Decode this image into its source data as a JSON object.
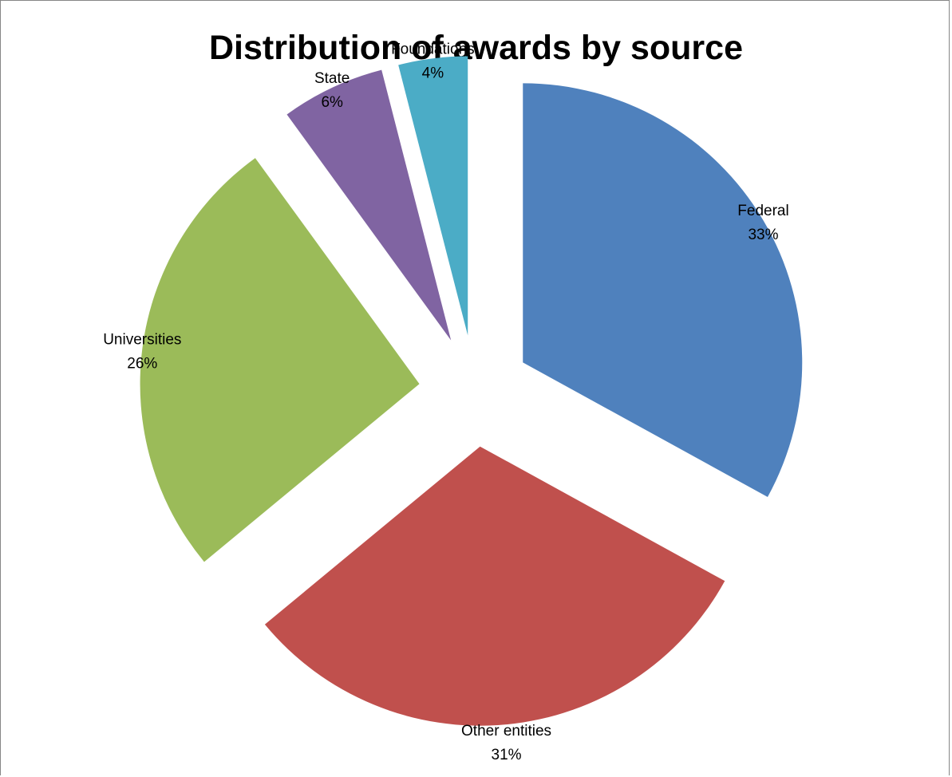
{
  "chart_data": {
    "type": "pie",
    "title": "Distribution of awards by source",
    "exploded": true,
    "start_angle_deg": 0,
    "direction": "clockwise",
    "legend": "none",
    "data_labels": "category-and-percent",
    "slices": [
      {
        "label": "Federal",
        "value": 33,
        "value_label": "33%",
        "color": "#4F81BD"
      },
      {
        "label": "Other entities",
        "value": 31,
        "value_label": "31%",
        "color": "#C0504D"
      },
      {
        "label": "Universities",
        "value": 26,
        "value_label": "26%",
        "color": "#9BBB59"
      },
      {
        "label": "State",
        "value": 6,
        "value_label": "6%",
        "color": "#8064A2"
      },
      {
        "label": "Foundations",
        "value": 4,
        "value_label": "4%",
        "color": "#4BACC6"
      }
    ]
  }
}
